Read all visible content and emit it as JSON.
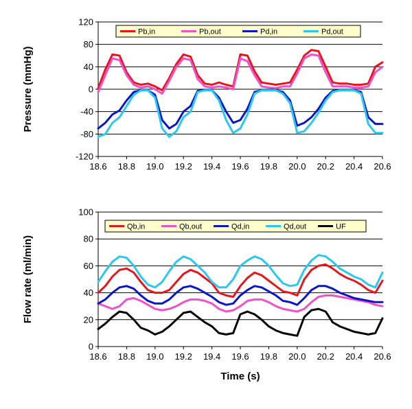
{
  "chart_data": [
    {
      "type": "line",
      "title": "",
      "xlabel": "",
      "ylabel": "Pressure (mmHg)",
      "xlim": [
        18.6,
        20.6
      ],
      "ylim": [
        -120,
        120
      ],
      "xticks": [
        "18.6",
        "18.8",
        "19.0",
        "19.2",
        "19.4",
        "19.6",
        "19.8",
        "20.0",
        "20.2",
        "20.4",
        "20.6"
      ],
      "yticks": [
        "-120",
        "-80",
        "-40",
        "0",
        "40",
        "80",
        "120"
      ],
      "grid": "horizontal",
      "legend_position": "top",
      "series": [
        {
          "name": "Pb,in",
          "color": "#e8141c",
          "x": [
            18.6,
            18.65,
            18.7,
            18.75,
            18.8,
            18.85,
            18.9,
            18.95,
            19.0,
            19.05,
            19.1,
            19.15,
            19.2,
            19.25,
            19.3,
            19.35,
            19.4,
            19.45,
            19.5,
            19.55,
            19.6,
            19.65,
            19.7,
            19.75,
            19.8,
            19.85,
            19.9,
            19.95,
            20.0,
            20.05,
            20.1,
            20.15,
            20.2,
            20.25,
            20.3,
            20.35,
            20.4,
            20.45,
            20.5,
            20.55,
            20.6
          ],
          "y": [
            2,
            35,
            62,
            60,
            30,
            12,
            8,
            10,
            5,
            -2,
            20,
            45,
            62,
            58,
            25,
            10,
            8,
            12,
            8,
            5,
            62,
            60,
            32,
            12,
            10,
            8,
            10,
            12,
            35,
            60,
            70,
            68,
            40,
            12,
            10,
            10,
            8,
            8,
            10,
            40,
            48
          ]
        },
        {
          "name": "Pb,out",
          "color": "#f050c8",
          "x": [
            18.6,
            18.65,
            18.7,
            18.75,
            18.8,
            18.85,
            18.9,
            18.95,
            19.0,
            19.05,
            19.1,
            19.15,
            19.2,
            19.25,
            19.3,
            19.35,
            19.4,
            19.45,
            19.5,
            19.55,
            19.6,
            19.65,
            19.7,
            19.75,
            19.8,
            19.85,
            19.9,
            19.95,
            20.0,
            20.05,
            20.1,
            20.15,
            20.2,
            20.25,
            20.3,
            20.35,
            20.4,
            20.45,
            20.5,
            20.55,
            20.6
          ],
          "y": [
            -5,
            25,
            55,
            52,
            25,
            8,
            3,
            5,
            0,
            -8,
            15,
            40,
            55,
            52,
            18,
            5,
            3,
            5,
            3,
            0,
            55,
            50,
            25,
            5,
            3,
            2,
            5,
            5,
            28,
            55,
            62,
            60,
            30,
            5,
            5,
            5,
            3,
            3,
            5,
            30,
            40
          ]
        },
        {
          "name": "Pd,in",
          "color": "#0a14c8",
          "x": [
            18.6,
            18.65,
            18.7,
            18.75,
            18.8,
            18.85,
            18.9,
            18.95,
            19.0,
            19.05,
            19.1,
            19.15,
            19.2,
            19.25,
            19.3,
            19.35,
            19.4,
            19.45,
            19.5,
            19.55,
            19.6,
            19.65,
            19.7,
            19.75,
            19.8,
            19.85,
            19.9,
            19.95,
            20.0,
            20.05,
            20.1,
            20.15,
            20.2,
            20.25,
            20.3,
            20.35,
            20.4,
            20.45,
            20.5,
            20.55,
            20.6
          ],
          "y": [
            -70,
            -60,
            -45,
            -38,
            -20,
            -5,
            -2,
            -2,
            -10,
            -55,
            -70,
            -62,
            -40,
            -30,
            -3,
            -2,
            -2,
            -15,
            -40,
            -60,
            -55,
            -35,
            -5,
            -2,
            -2,
            -2,
            -5,
            -20,
            -65,
            -60,
            -50,
            -35,
            -15,
            -3,
            -2,
            -2,
            -2,
            -5,
            -50,
            -62,
            -62
          ]
        },
        {
          "name": "Pd,out",
          "color": "#28c8f0",
          "x": [
            18.6,
            18.65,
            18.7,
            18.75,
            18.8,
            18.85,
            18.9,
            18.95,
            19.0,
            19.05,
            19.1,
            19.15,
            19.2,
            19.25,
            19.3,
            19.35,
            19.4,
            19.45,
            19.5,
            19.55,
            19.6,
            19.65,
            19.7,
            19.75,
            19.8,
            19.85,
            19.9,
            19.95,
            20.0,
            20.05,
            20.1,
            20.15,
            20.2,
            20.25,
            20.3,
            20.35,
            20.4,
            20.45,
            20.5,
            20.55,
            20.6
          ],
          "y": [
            -85,
            -80,
            -60,
            -50,
            -30,
            -10,
            -2,
            -2,
            -15,
            -70,
            -85,
            -75,
            -50,
            -40,
            -5,
            -2,
            -2,
            -20,
            -55,
            -78,
            -70,
            -45,
            -8,
            -2,
            -2,
            -2,
            -8,
            -25,
            -78,
            -75,
            -60,
            -42,
            -20,
            -5,
            -2,
            -2,
            -2,
            -8,
            -62,
            -78,
            -78
          ]
        }
      ]
    },
    {
      "type": "line",
      "title": "",
      "xlabel": "Time (s)",
      "ylabel": "Flow rate (ml/min)",
      "xlim": [
        18.6,
        20.6
      ],
      "ylim": [
        0,
        100
      ],
      "xticks": [
        "18.6",
        "18.8",
        "19.0",
        "19.2",
        "19.4",
        "19.6",
        "19.8",
        "20.0",
        "20.2",
        "20.4",
        "20.6"
      ],
      "yticks": [
        "0",
        "20",
        "40",
        "60",
        "80",
        "100"
      ],
      "grid": "horizontal",
      "legend_position": "top",
      "series": [
        {
          "name": "Qb,in",
          "color": "#e8141c",
          "x": [
            18.6,
            18.65,
            18.7,
            18.75,
            18.8,
            18.85,
            18.9,
            18.95,
            19.0,
            19.05,
            19.1,
            19.15,
            19.2,
            19.25,
            19.3,
            19.35,
            19.4,
            19.45,
            19.5,
            19.55,
            19.6,
            19.65,
            19.7,
            19.75,
            19.8,
            19.85,
            19.9,
            19.95,
            20.0,
            20.05,
            20.1,
            20.15,
            20.2,
            20.25,
            20.3,
            20.35,
            20.4,
            20.45,
            20.5,
            20.55,
            20.6
          ],
          "y": [
            40,
            45,
            52,
            57,
            58,
            55,
            48,
            42,
            40,
            40,
            42,
            48,
            54,
            57,
            55,
            51,
            47,
            40,
            38,
            37,
            45,
            51,
            55,
            53,
            49,
            45,
            41,
            40,
            38,
            50,
            57,
            60,
            61,
            58,
            54,
            51,
            49,
            46,
            42,
            40,
            49
          ]
        },
        {
          "name": "Qb,out",
          "color": "#f050c8",
          "x": [
            18.6,
            18.65,
            18.7,
            18.75,
            18.8,
            18.85,
            18.9,
            18.95,
            19.0,
            19.05,
            19.1,
            19.15,
            19.2,
            19.25,
            19.3,
            19.35,
            19.4,
            19.45,
            19.5,
            19.55,
            19.6,
            19.65,
            19.7,
            19.75,
            19.8,
            19.85,
            19.9,
            19.95,
            20.0,
            20.05,
            20.1,
            20.15,
            20.2,
            20.25,
            20.3,
            20.35,
            20.4,
            20.45,
            20.5,
            20.55,
            20.6
          ],
          "y": [
            32,
            30,
            28,
            30,
            35,
            36,
            34,
            31,
            28,
            27,
            28,
            30,
            33,
            35,
            35,
            34,
            32,
            28,
            26,
            27,
            30,
            34,
            35,
            35,
            33,
            30,
            28,
            27,
            26,
            28,
            33,
            37,
            38,
            38,
            37,
            36,
            35,
            34,
            33,
            31,
            30
          ]
        },
        {
          "name": "Qd,in",
          "color": "#0a14c8",
          "x": [
            18.6,
            18.65,
            18.7,
            18.75,
            18.8,
            18.85,
            18.9,
            18.95,
            19.0,
            19.05,
            19.1,
            19.15,
            19.2,
            19.25,
            19.3,
            19.35,
            19.4,
            19.45,
            19.5,
            19.55,
            19.6,
            19.65,
            19.7,
            19.75,
            19.8,
            19.85,
            19.9,
            19.95,
            20.0,
            20.05,
            20.1,
            20.15,
            20.2,
            20.25,
            20.3,
            20.35,
            20.4,
            20.45,
            20.5,
            20.55,
            20.6
          ],
          "y": [
            32,
            35,
            40,
            44,
            45,
            43,
            38,
            34,
            32,
            32,
            35,
            40,
            44,
            45,
            43,
            40,
            37,
            33,
            31,
            32,
            38,
            42,
            45,
            44,
            41,
            38,
            34,
            33,
            31,
            36,
            42,
            45,
            45,
            43,
            40,
            38,
            36,
            35,
            34,
            33,
            33
          ]
        },
        {
          "name": "Qd,out",
          "color": "#28c8f0",
          "x": [
            18.6,
            18.65,
            18.7,
            18.75,
            18.8,
            18.85,
            18.9,
            18.95,
            19.0,
            19.05,
            19.1,
            19.15,
            19.2,
            19.25,
            19.3,
            19.35,
            19.4,
            19.45,
            19.5,
            19.55,
            19.6,
            19.65,
            19.7,
            19.75,
            19.8,
            19.85,
            19.9,
            19.95,
            20.0,
            20.05,
            20.1,
            20.15,
            20.2,
            20.25,
            20.3,
            20.35,
            20.4,
            20.45,
            20.5,
            20.55,
            20.6
          ],
          "y": [
            48,
            56,
            63,
            67,
            66,
            60,
            52,
            46,
            44,
            48,
            56,
            63,
            67,
            65,
            60,
            55,
            48,
            44,
            44,
            50,
            60,
            64,
            67,
            65,
            60,
            53,
            47,
            45,
            46,
            57,
            64,
            68,
            67,
            63,
            58,
            55,
            52,
            50,
            46,
            44,
            55
          ]
        },
        {
          "name": "UF",
          "color": "#000000",
          "x": [
            18.6,
            18.65,
            18.7,
            18.75,
            18.8,
            18.85,
            18.9,
            18.95,
            19.0,
            19.05,
            19.1,
            19.15,
            19.2,
            19.25,
            19.3,
            19.35,
            19.4,
            19.45,
            19.5,
            19.55,
            19.6,
            19.65,
            19.7,
            19.75,
            19.8,
            19.85,
            19.9,
            19.95,
            20.0,
            20.05,
            20.1,
            20.15,
            20.2,
            20.25,
            20.3,
            20.35,
            20.4,
            20.45,
            20.5,
            20.55,
            20.6
          ],
          "y": [
            13,
            17,
            22,
            26,
            25,
            20,
            14,
            12,
            9,
            11,
            15,
            20,
            25,
            26,
            22,
            18,
            15,
            10,
            9,
            10,
            24,
            26,
            24,
            20,
            15,
            12,
            10,
            9,
            8,
            22,
            27,
            28,
            26,
            18,
            15,
            13,
            11,
            10,
            9,
            10,
            21
          ]
        }
      ]
    }
  ]
}
